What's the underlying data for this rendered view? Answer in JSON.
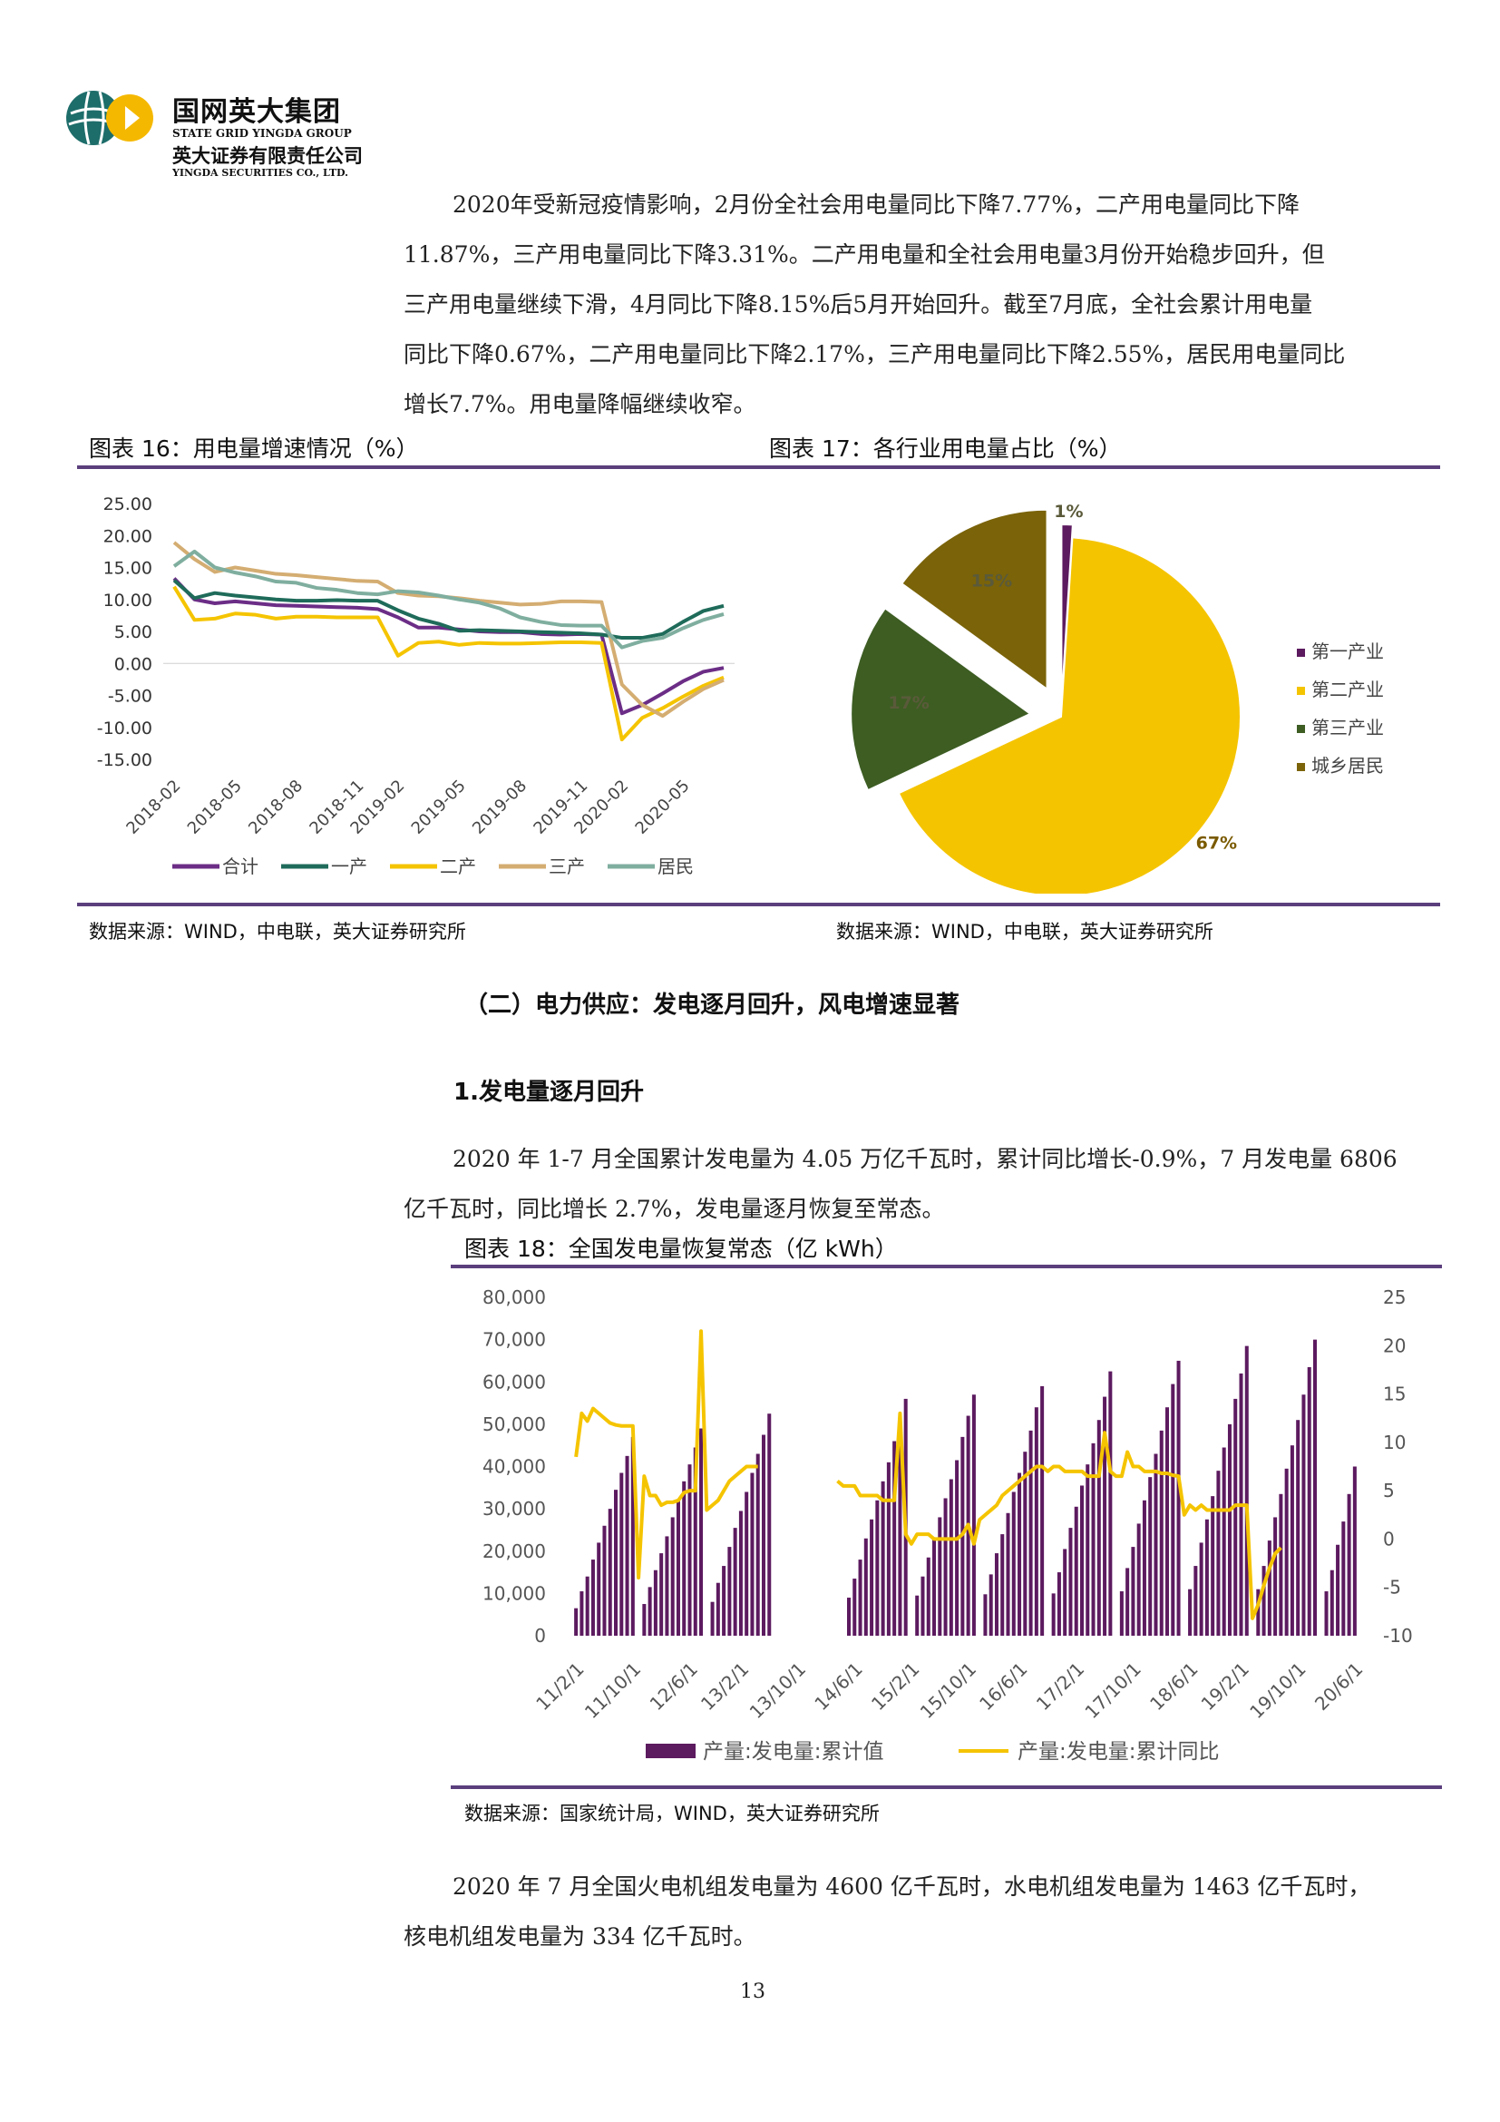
{
  "header": {
    "company_cn": "国网英大集团",
    "company_en": "STATE GRID YINGDA GROUP",
    "sub_cn": "英大证券有限责任公司",
    "sub_en": "YINGDA SECURITIES CO., LTD."
  },
  "paragraph1": [
    "2020年受新冠疫情影响，2月份全社会用电量同比下降7.77%，二产用电量同比下降",
    "11.87%，三产用电量同比下降3.31%。二产用电量和全社会用电量3月份开始稳步回升，但",
    "三产用电量继续下滑，4月同比下降8.15%后5月开始回升。截至7月底，全社会累计用电量",
    "同比下降0.67%，二产用电量同比下降2.17%，三产用电量同比下降2.55%，居民用电量同比",
    "增长7.7%。用电量降幅继续收窄。"
  ],
  "fig16": {
    "title": "图表 16：用电量增速情况（%）",
    "source": "数据来源：WIND，中电联，英大证券研究所"
  },
  "fig17": {
    "title": "图表 17：各行业用电量占比（%）",
    "source": "数据来源：WIND，中电联，英大证券研究所"
  },
  "section2": {
    "title": "（二）电力供应：发电逐月回升，风电增速显著"
  },
  "subsection1": {
    "title": "1.发电量逐月回升"
  },
  "paragraph2": [
    "2020 年 1-7 月全国累计发电量为 4.05 万亿千瓦时，累计同比增长-0.9%，7 月发电量 6806",
    "亿千瓦时，同比增长 2.7%，发电量逐月恢复至常态。"
  ],
  "fig18": {
    "title": "图表 18：全国发电量恢复常态（亿 kWh）",
    "source": "数据来源：国家统计局，WIND，英大证券研究所"
  },
  "paragraph3": [
    "2020 年 7 月全国火电机组发电量为 4600 亿千瓦时，水电机组发电量为 1463 亿千瓦时，",
    "核电机组发电量为 334 亿千瓦时。"
  ],
  "page_number": "13",
  "colors": {
    "purple": "#6b2d86",
    "teal": "#1f6b5a",
    "yellow": "#f5c400",
    "tan": "#d4ad72",
    "sage": "#7fae9f",
    "rule": "#5b3f7d",
    "olive": "#7a6309",
    "darkgreen": "#3d5d23",
    "darkpurple": "#5c1a5f"
  },
  "chart_data": [
    {
      "type": "line",
      "ylim": [
        -15,
        25
      ],
      "yticks": [
        "25.00",
        "20.00",
        "15.00",
        "10.00",
        "5.00",
        "0.00",
        "-5.00",
        "-10.00",
        "-15.00"
      ],
      "xticks": [
        "2018-02",
        "2018-05",
        "2018-08",
        "2018-11",
        "2019-02",
        "2019-05",
        "2019-08",
        "2019-11",
        "2020-02",
        "2020-05"
      ],
      "x": [
        "2018-02",
        "2018-03",
        "2018-04",
        "2018-05",
        "2018-06",
        "2018-07",
        "2018-08",
        "2018-09",
        "2018-10",
        "2018-11",
        "2018-12",
        "2019-02",
        "2019-03",
        "2019-04",
        "2019-05",
        "2019-06",
        "2019-07",
        "2019-08",
        "2019-09",
        "2019-10",
        "2019-11",
        "2019-12",
        "2020-02",
        "2020-03",
        "2020-04",
        "2020-05",
        "2020-06",
        "2020-07"
      ],
      "series": [
        {
          "name": "合计",
          "color": "#6b2d86",
          "values": [
            13.3,
            10.0,
            9.4,
            9.7,
            9.4,
            9.1,
            9.0,
            8.9,
            8.8,
            8.7,
            8.5,
            7.2,
            5.6,
            5.6,
            5.3,
            5.0,
            4.9,
            4.9,
            4.6,
            4.5,
            4.6,
            4.5,
            -7.8,
            -6.5,
            -4.7,
            -2.8,
            -1.3,
            -0.7
          ]
        },
        {
          "name": "一产",
          "color": "#1f6b5a",
          "values": [
            13.0,
            10.2,
            11.0,
            10.6,
            10.3,
            10.0,
            9.8,
            9.8,
            9.9,
            9.8,
            9.8,
            8.3,
            7.0,
            6.2,
            5.1,
            5.2,
            5.1,
            5.0,
            4.9,
            4.8,
            4.7,
            4.5,
            4.0,
            4.0,
            4.6,
            6.5,
            8.2,
            9.0
          ]
        },
        {
          "name": "二产",
          "color": "#f5c400",
          "values": [
            12.0,
            6.8,
            7.0,
            7.8,
            7.6,
            7.0,
            7.3,
            7.3,
            7.2,
            7.2,
            7.2,
            1.2,
            3.2,
            3.4,
            2.9,
            3.2,
            3.1,
            3.1,
            3.2,
            3.3,
            3.3,
            3.2,
            -11.9,
            -8.5,
            -7.0,
            -5.2,
            -3.5,
            -2.2
          ]
        },
        {
          "name": "三产",
          "color": "#d4ad72",
          "values": [
            18.9,
            16.3,
            14.3,
            15.0,
            14.5,
            14.0,
            13.8,
            13.5,
            13.2,
            12.9,
            12.8,
            11.0,
            10.6,
            10.5,
            10.2,
            9.8,
            9.5,
            9.2,
            9.3,
            9.7,
            9.7,
            9.6,
            -3.3,
            -6.5,
            -8.2,
            -6.0,
            -4.0,
            -2.6
          ]
        },
        {
          "name": "居民",
          "color": "#7fae9f",
          "values": [
            15.2,
            17.5,
            15.0,
            14.2,
            13.6,
            12.8,
            12.6,
            11.8,
            11.5,
            11.0,
            10.8,
            11.3,
            11.1,
            10.6,
            10.0,
            9.5,
            8.6,
            7.2,
            6.5,
            6.0,
            5.9,
            5.9,
            2.5,
            3.5,
            4.0,
            5.5,
            6.8,
            7.7
          ]
        }
      ]
    },
    {
      "type": "pie",
      "categories": [
        "第一产业",
        "第二产业",
        "第三产业",
        "城乡居民"
      ],
      "values": [
        1,
        67,
        17,
        15
      ],
      "labels": [
        "1%",
        "67%",
        "17%",
        "15%"
      ],
      "colors": [
        "#5c1a5f",
        "#f5c400",
        "#3d5d23",
        "#7a6309"
      ],
      "legend": "right"
    },
    {
      "type": "bar",
      "title": "",
      "y_left_ticks": [
        "80,000",
        "70,000",
        "60,000",
        "50,000",
        "40,000",
        "30,000",
        "20,000",
        "10,000",
        "0"
      ],
      "y_right_ticks": [
        "25",
        "20",
        "15",
        "10",
        "5",
        "0",
        "-5",
        "-10"
      ],
      "ylim_left": [
        0,
        80000
      ],
      "ylim_right": [
        -10,
        25
      ],
      "xticks": [
        "11/2/1",
        "11/10/1",
        "12/6/1",
        "13/2/1",
        "13/10/1",
        "14/6/1",
        "15/2/1",
        "15/10/1",
        "16/6/1",
        "17/2/1",
        "17/10/1",
        "18/6/1",
        "19/2/1",
        "19/10/1",
        "20/6/1"
      ],
      "series": [
        {
          "name": "产量:发电量:累计值",
          "color": "#5c1a5f",
          "type": "bar",
          "values": [
            6500,
            10500,
            14000,
            18000,
            22000,
            26000,
            30000,
            34500,
            38500,
            42500,
            47000,
            0,
            7500,
            11500,
            15500,
            19500,
            23500,
            28000,
            32000,
            36500,
            40500,
            44500,
            49000,
            0,
            8000,
            12500,
            16500,
            21000,
            25500,
            29500,
            34000,
            38500,
            43000,
            47500,
            52500,
            0,
            0,
            0,
            0,
            0,
            0,
            0,
            0,
            0,
            0,
            0,
            0,
            0,
            9000,
            13500,
            18000,
            23000,
            27500,
            32000,
            36500,
            41000,
            46000,
            51000,
            56000,
            0,
            9500,
            14000,
            18500,
            23000,
            28000,
            32500,
            37000,
            41500,
            47000,
            52000,
            57000,
            0,
            9800,
            14500,
            19500,
            24000,
            29000,
            34000,
            38500,
            43500,
            48500,
            54000,
            59000,
            0,
            10000,
            15000,
            20500,
            25500,
            30500,
            35500,
            40500,
            45500,
            51000,
            56500,
            62500,
            0,
            10500,
            16000,
            21000,
            26500,
            32000,
            37500,
            43000,
            48500,
            54000,
            59500,
            65000,
            0,
            11000,
            16500,
            22000,
            27500,
            33000,
            39000,
            44500,
            50000,
            56000,
            62000,
            68500,
            0,
            11000,
            16500,
            22500,
            28000,
            33500,
            39500,
            45000,
            51000,
            57000,
            63500,
            70000,
            0,
            10500,
            15500,
            21500,
            27000,
            33500,
            40000
          ]
        },
        {
          "name": "产量:发电量:累计同比",
          "color": "#f5c400",
          "type": "line",
          "values": [
            8.5,
            13.0,
            12.2,
            13.5,
            13.0,
            12.5,
            12.0,
            11.8,
            11.7,
            11.7,
            11.7,
            -4.0,
            6.5,
            4.5,
            4.5,
            3.5,
            3.8,
            3.8,
            4.0,
            4.8,
            5.0,
            5.0,
            21.5,
            3.0,
            3.5,
            4.0,
            5.0,
            6.0,
            6.5,
            7.0,
            7.5,
            7.5,
            7.5,
            null,
            null,
            null,
            null,
            null,
            null,
            null,
            null,
            null,
            null,
            null,
            null,
            null,
            6.0,
            5.5,
            5.5,
            5.5,
            4.5,
            4.5,
            4.5,
            4.5,
            4.0,
            4.0,
            4.0,
            13.0,
            0.5,
            -0.5,
            0.5,
            0.5,
            0.5,
            0.0,
            0.0,
            0.0,
            0.0,
            0.0,
            0.5,
            1.5,
            -0.5,
            2.0,
            2.5,
            3.0,
            3.5,
            4.5,
            5.0,
            5.5,
            6.0,
            6.5,
            7.0,
            7.5,
            7.5,
            7.0,
            7.5,
            7.5,
            7.0,
            7.0,
            7.0,
            7.0,
            6.5,
            6.5,
            6.5,
            11.0,
            7.0,
            6.5,
            6.5,
            9.0,
            7.5,
            7.5,
            7.0,
            7.0,
            7.0,
            6.8,
            6.8,
            6.6,
            6.5,
            2.5,
            3.5,
            3.0,
            3.5,
            3.0,
            3.0,
            3.0,
            3.0,
            3.0,
            3.5,
            3.5,
            3.5,
            -8.2,
            -6.8,
            -4.8,
            -3.0,
            -1.5,
            -0.9
          ]
        }
      ],
      "legend": "bottom"
    }
  ]
}
